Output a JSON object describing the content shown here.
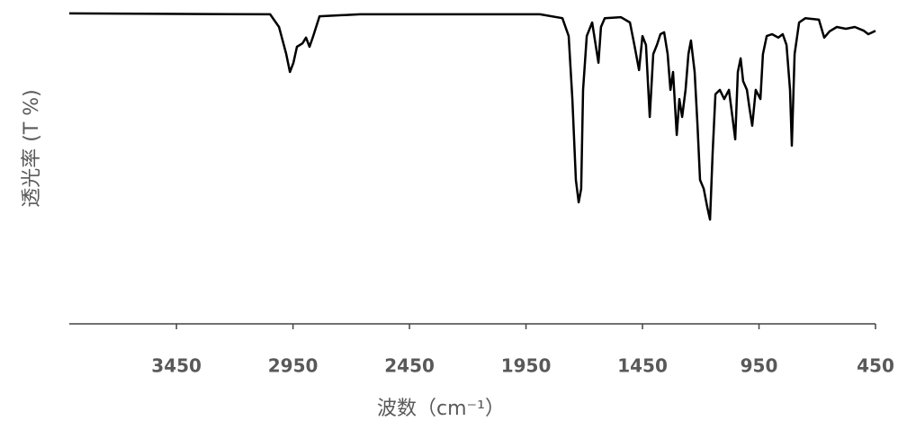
{
  "chart_data": {
    "type": "line",
    "x_label": "波数（cm⁻¹）",
    "y_label": "透光率 (T %)",
    "color": "#000000",
    "x": [
      3910,
      3048,
      3010,
      2979,
      2963,
      2948,
      2933,
      2909,
      2894,
      2879,
      2863,
      2836,
      2662,
      1890,
      1794,
      1767,
      1751,
      1736,
      1724,
      1713,
      1705,
      1689,
      1666,
      1651,
      1639,
      1628,
      1612,
      1543,
      1504,
      1485,
      1465,
      1450,
      1435,
      1419,
      1404,
      1388,
      1373,
      1357,
      1342,
      1330,
      1319,
      1303,
      1292,
      1280,
      1265,
      1253,
      1242,
      1226,
      1214,
      1203,
      1187,
      1172,
      1160,
      1149,
      1137,
      1118,
      1099,
      1079,
      1064,
      1052,
      1041,
      1029,
      1018,
      1002,
      991,
      979,
      964,
      944,
      933,
      917,
      894,
      867,
      848,
      832,
      817,
      809,
      797,
      778,
      751,
      693,
      670,
      647,
      616,
      577,
      539,
      500,
      481,
      450
    ],
    "values": [
      98.6,
      98.3,
      94.3,
      85.7,
      80.0,
      82.9,
      88.0,
      89.1,
      90.9,
      88.0,
      91.4,
      97.7,
      98.3,
      98.3,
      97.1,
      91.4,
      71.4,
      45.7,
      38.6,
      42.9,
      74.3,
      91.4,
      95.7,
      88.6,
      82.9,
      94.3,
      97.1,
      97.4,
      95.7,
      88.6,
      80.6,
      91.4,
      88.6,
      65.7,
      85.7,
      88.6,
      92.0,
      92.6,
      85.7,
      74.3,
      80.0,
      60.0,
      71.4,
      65.7,
      74.3,
      85.7,
      90.0,
      80.0,
      62.9,
      45.7,
      42.9,
      37.1,
      33.1,
      54.3,
      72.9,
      74.3,
      71.4,
      74.3,
      65.7,
      58.6,
      80.0,
      84.3,
      77.1,
      74.3,
      68.6,
      62.9,
      74.3,
      71.4,
      85.7,
      91.4,
      92.0,
      90.9,
      92.0,
      88.6,
      74.3,
      56.6,
      85.7,
      95.7,
      97.1,
      96.6,
      90.9,
      92.9,
      94.3,
      93.7,
      94.3,
      93.1,
      92.0,
      93.1
    ],
    "xlim": [
      3910,
      450
    ],
    "xticks": [
      3450,
      2950,
      2450,
      1950,
      1450,
      950,
      450
    ],
    "ylim": [
      0,
      100
    ]
  }
}
